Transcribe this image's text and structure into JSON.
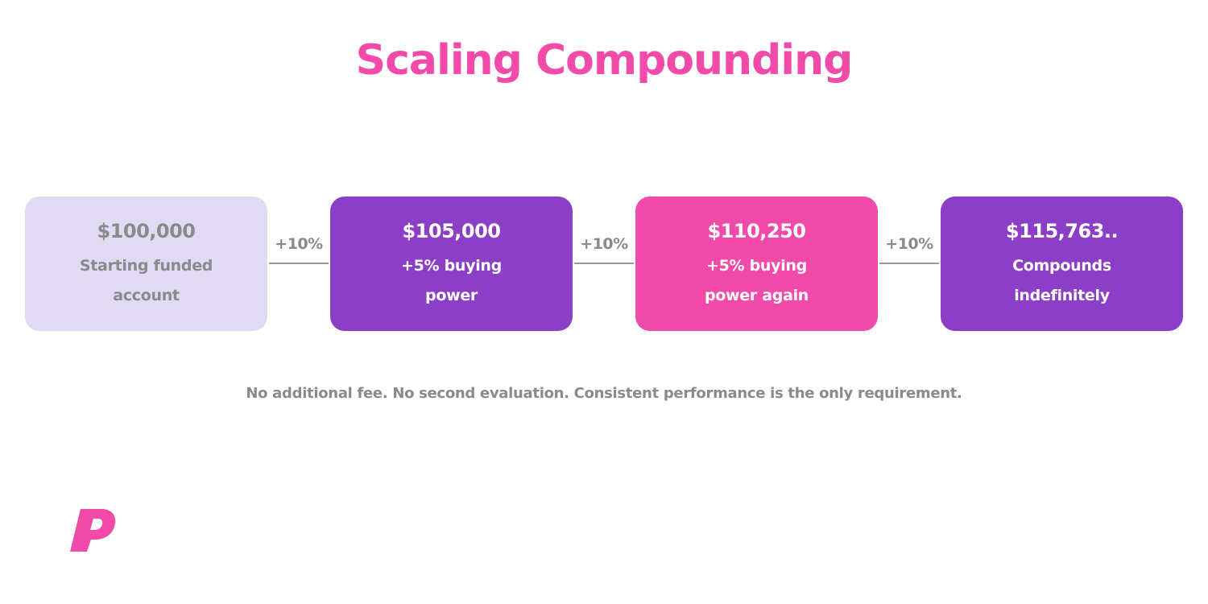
{
  "title": "Scaling Compounding",
  "cards": [
    {
      "amount": "$100,000",
      "line1": "Starting funded",
      "line2": "account",
      "bg": "#e0daf3",
      "fg": "#8a8a8a"
    },
    {
      "amount": "$105,000",
      "line1": "+5% buying",
      "line2": "power",
      "bg": "#8b3fc6",
      "fg": "#ffffff"
    },
    {
      "amount": "$110,250",
      "line1": "+5% buying",
      "line2": "power again",
      "bg": "#f14aa8",
      "fg": "#ffffff"
    },
    {
      "amount": "$115,763..",
      "line1": "Compounds",
      "line2": "indefinitely",
      "bg": "#8b3fc6",
      "fg": "#ffffff"
    }
  ],
  "connectors": [
    "+10%",
    "+10%",
    "+10%"
  ],
  "footnote": "No additional fee. No second evaluation. Consistent performance is the only requirement.",
  "colors": {
    "title": "#f14aa8",
    "logo": "#f14aa8",
    "muted_text": "#8a8a8a"
  },
  "logo": {
    "icon": "brand-p-logo-icon"
  }
}
